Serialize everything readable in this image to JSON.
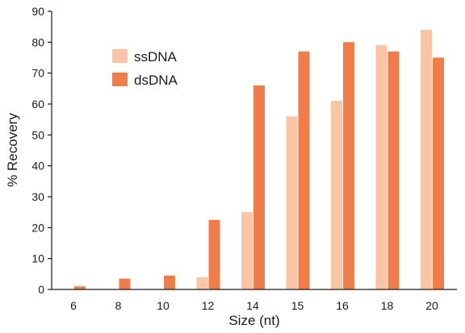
{
  "chart_data": {
    "type": "bar",
    "xlabel": "Size (nt)",
    "ylabel": "% Recovery",
    "ylim": [
      0,
      90
    ],
    "yticks": [
      0,
      10,
      20,
      30,
      40,
      50,
      60,
      70,
      80,
      90
    ],
    "categories": [
      "6",
      "8",
      "10",
      "12",
      "14",
      "15",
      "16",
      "18",
      "20"
    ],
    "series": [
      {
        "name": "ssDNA",
        "color": "#f9c5a5",
        "values": [
          0,
          0,
          0,
          4,
          25,
          56,
          61,
          79,
          84
        ]
      },
      {
        "name": "dsDNA",
        "color": "#f07c4a",
        "values": [
          1,
          3.5,
          4.5,
          22.5,
          66,
          77,
          80,
          77,
          75
        ]
      }
    ],
    "legend_position": "top-left",
    "grid": false
  }
}
